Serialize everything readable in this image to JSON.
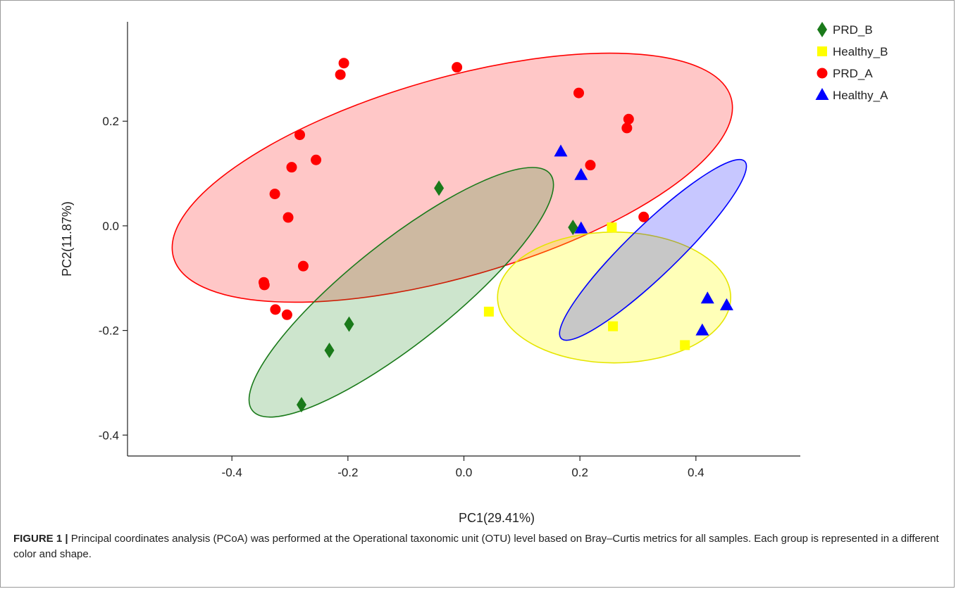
{
  "chart_data": {
    "type": "scatter",
    "xlabel": "PC1(29.41%)",
    "ylabel": "PC2(11.87%)",
    "xlim": [
      -0.58,
      0.58
    ],
    "ylim": [
      -0.44,
      0.39
    ],
    "xticks": [
      -0.4,
      -0.2,
      0.0,
      0.2,
      0.4
    ],
    "xtick_labels": [
      "-0.4",
      "-0.2",
      "0.0",
      "0.2",
      "0.4"
    ],
    "yticks": [
      -0.4,
      -0.2,
      0.0,
      0.2
    ],
    "ytick_labels": [
      "-0.4",
      "-0.2",
      "0.0",
      "0.2"
    ],
    "grid": false,
    "legend_position": "top-right",
    "series": [
      {
        "name": "PRD_B",
        "marker": "diamond",
        "color": "#1a7a1a",
        "points": [
          [
            -0.043,
            0.072
          ],
          [
            0.188,
            -0.003
          ],
          [
            -0.198,
            -0.188
          ],
          [
            -0.232,
            -0.238
          ],
          [
            -0.28,
            -0.342
          ]
        ]
      },
      {
        "name": "Healthy_B",
        "marker": "square",
        "color": "#ffff00",
        "points": [
          [
            0.255,
            -0.003
          ],
          [
            0.043,
            -0.164
          ],
          [
            0.257,
            -0.192
          ],
          [
            0.381,
            -0.228
          ]
        ]
      },
      {
        "name": "PRD_A",
        "marker": "circle",
        "color": "#ff0000",
        "points": [
          [
            -0.207,
            0.311
          ],
          [
            -0.213,
            0.289
          ],
          [
            -0.012,
            0.303
          ],
          [
            0.198,
            0.254
          ],
          [
            0.284,
            0.204
          ],
          [
            0.281,
            0.187
          ],
          [
            -0.283,
            0.174
          ],
          [
            -0.255,
            0.126
          ],
          [
            -0.297,
            0.112
          ],
          [
            0.218,
            0.116
          ],
          [
            -0.326,
            0.061
          ],
          [
            -0.303,
            0.016
          ],
          [
            0.31,
            0.017
          ],
          [
            -0.277,
            -0.077
          ],
          [
            -0.345,
            -0.108
          ],
          [
            -0.344,
            -0.113
          ],
          [
            -0.325,
            -0.16
          ],
          [
            -0.305,
            -0.17
          ]
        ]
      },
      {
        "name": "Healthy_A",
        "marker": "triangle",
        "color": "#0000ff",
        "points": [
          [
            0.167,
            0.142
          ],
          [
            0.202,
            0.097
          ],
          [
            0.202,
            -0.005
          ],
          [
            0.42,
            -0.139
          ],
          [
            0.453,
            -0.152
          ],
          [
            0.411,
            -0.2
          ]
        ]
      }
    ],
    "ellipses": [
      {
        "series": "PRD_A",
        "cx": -0.02,
        "cy": 0.092,
        "rx": 0.5,
        "ry": 0.19,
        "angle_deg": 16,
        "fill": "#ff0000",
        "stroke": "#ff0000",
        "fill_opacity": 0.22
      },
      {
        "series": "PRD_B",
        "cx": -0.108,
        "cy": -0.127,
        "rx": 0.328,
        "ry": 0.097,
        "angle_deg": 38.5,
        "fill": "#1a8a1a",
        "stroke": "#1a7a1a",
        "fill_opacity": 0.22
      },
      {
        "series": "Healthy_B",
        "cx": 0.259,
        "cy": -0.137,
        "rx": 0.201,
        "ry": 0.125,
        "angle_deg": 0,
        "fill": "#ffff00",
        "stroke": "#e5e500",
        "fill_opacity": 0.28
      },
      {
        "series": "Healthy_A",
        "cx": 0.326,
        "cy": -0.046,
        "rx": 0.22,
        "ry": 0.048,
        "angle_deg": 44,
        "fill": "#0000ff",
        "stroke": "#0000ff",
        "fill_opacity": 0.22
      }
    ]
  },
  "caption": {
    "lead": "FIGURE 1 |",
    "text": " Principal coordinates analysis (PCoA) was performed at the Operational taxonomic unit (OTU) level based on Bray–Curtis metrics for all samples. Each group is represented in a different color and shape."
  }
}
